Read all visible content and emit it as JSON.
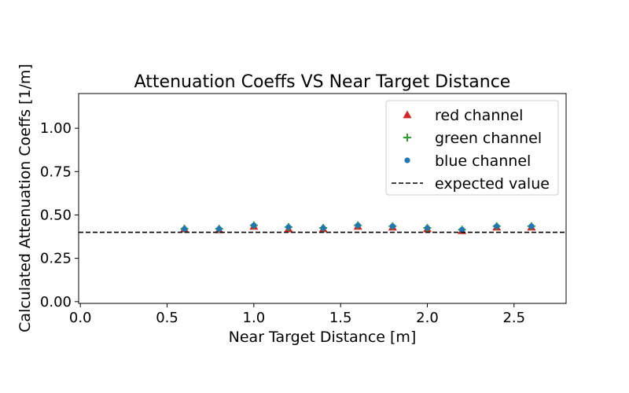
{
  "chart_data": {
    "type": "scatter",
    "title": "Attenuation Coeffs VS Near Target Distance",
    "xlabel": "Near Target Distance [m]",
    "ylabel": "Calculated Attenuation Coeffs [1/m]",
    "xlim": [
      -0.01,
      2.8
    ],
    "ylim": [
      -0.01,
      1.2
    ],
    "xticks": [
      0.0,
      0.5,
      1.0,
      1.5,
      2.0,
      2.5
    ],
    "xtick_labels": [
      "0.0",
      "0.5",
      "1.0",
      "1.5",
      "2.0",
      "2.5"
    ],
    "yticks": [
      0.0,
      0.25,
      0.5,
      0.75,
      1.0
    ],
    "ytick_labels": [
      "0.00",
      "0.25",
      "0.50",
      "0.75",
      "1.00"
    ],
    "grid": false,
    "legend_position": "top-right",
    "x": [
      0.6,
      0.8,
      1.0,
      1.2,
      1.4,
      1.6,
      1.8,
      2.0,
      2.2,
      2.4,
      2.6
    ],
    "series": [
      {
        "name": "red channel",
        "marker": "triangle",
        "color": "#d62728",
        "values": [
          0.42,
          0.415,
          0.435,
          0.42,
          0.42,
          0.435,
          0.43,
          0.42,
          0.41,
          0.43,
          0.43
        ]
      },
      {
        "name": "green channel",
        "marker": "plus",
        "color": "#2ca02c",
        "values": [
          0.42,
          0.42,
          0.44,
          0.43,
          0.425,
          0.44,
          0.435,
          0.425,
          0.415,
          0.435,
          0.435
        ]
      },
      {
        "name": "blue channel",
        "marker": "circle",
        "color": "#1f77b4",
        "values": [
          0.42,
          0.42,
          0.44,
          0.43,
          0.425,
          0.44,
          0.435,
          0.425,
          0.415,
          0.435,
          0.435
        ]
      }
    ],
    "reference_line": {
      "name": "expected value",
      "y": 0.4,
      "style": "dashed",
      "color": "#000000"
    }
  }
}
